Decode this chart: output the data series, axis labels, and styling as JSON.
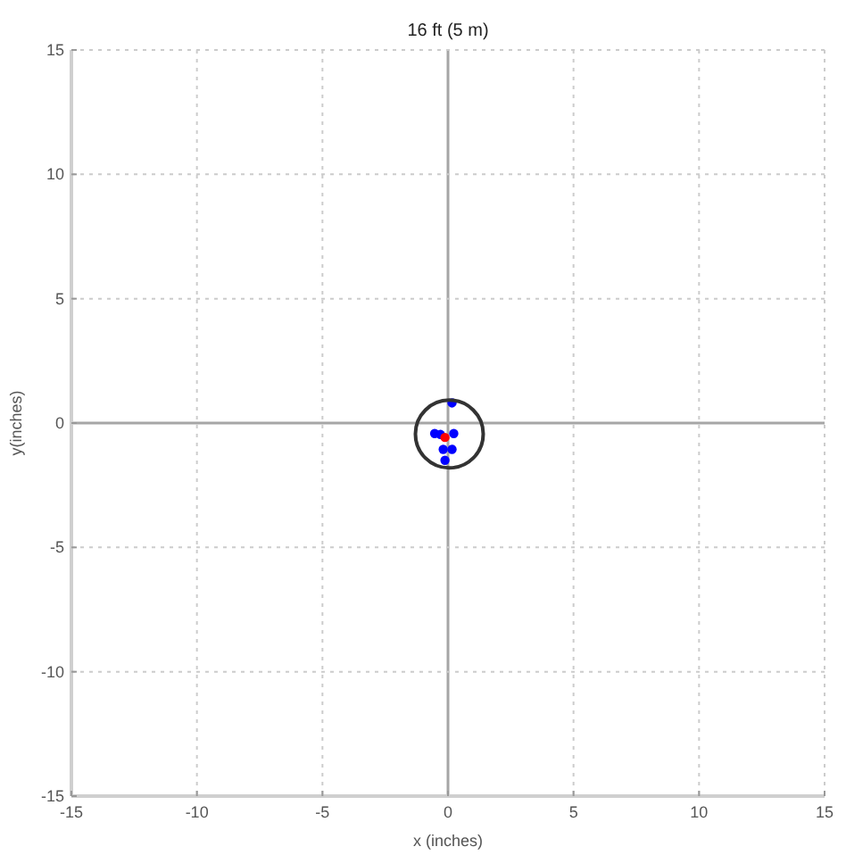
{
  "chart_data": {
    "type": "scatter",
    "title": "16 ft (5 m)",
    "xlabel": "x (inches)",
    "ylabel": "y(inches)",
    "xlim": [
      -15,
      15
    ],
    "ylim": [
      -15,
      15
    ],
    "xticks": [
      -15,
      -10,
      -5,
      0,
      5,
      10,
      15
    ],
    "yticks": [
      -15,
      -10,
      -5,
      0,
      5,
      10,
      15
    ],
    "grid": true,
    "marker": "circle",
    "series": [
      {
        "type": "scatter",
        "color": "#0000ff",
        "x": [
          0.16,
          -0.53,
          -0.3,
          0.23,
          -0.19,
          0.16,
          -0.12
        ],
        "values": [
          0.81,
          -0.42,
          -0.46,
          -0.42,
          -1.06,
          -1.06,
          -1.5
        ]
      },
      {
        "type": "scatter",
        "color": "#ff0000",
        "x": [
          -0.12
        ],
        "values": [
          -0.58
        ]
      }
    ]
  }
}
